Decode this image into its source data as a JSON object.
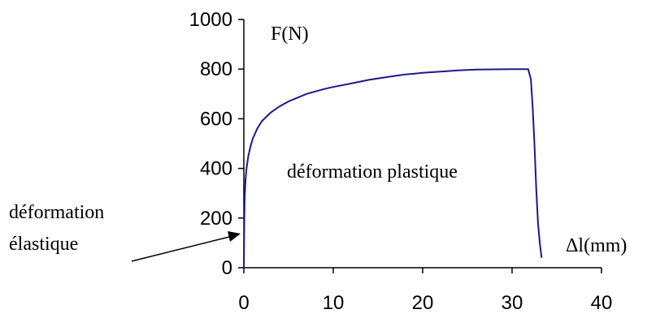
{
  "chart_data": {
    "type": "line",
    "title": "",
    "xlabel": "Δl(mm)",
    "ylabel": "F(N)",
    "xlim": [
      0,
      40
    ],
    "ylim": [
      0,
      1000
    ],
    "x_ticks": [
      0,
      10,
      20,
      30,
      40
    ],
    "y_ticks": [
      0,
      200,
      400,
      600,
      800,
      1000
    ],
    "grid": false,
    "series": [
      {
        "color": "#1a1a8c",
        "x": [
          0,
          0.05,
          0.1,
          0.2,
          0.3,
          0.5,
          0.75,
          1,
          1.5,
          2,
          3,
          4,
          5,
          6,
          7,
          8,
          9,
          10,
          12,
          14,
          16,
          18,
          20,
          22,
          24,
          26,
          28,
          30,
          31,
          31.8,
          32.1,
          32.3,
          32.5,
          32.7,
          32.9,
          33.1,
          33.3
        ],
        "y": [
          0,
          200,
          290,
          360,
          400,
          450,
          490,
          520,
          560,
          590,
          625,
          650,
          670,
          685,
          700,
          710,
          720,
          728,
          742,
          757,
          768,
          778,
          785,
          790,
          795,
          798,
          799,
          800,
          800,
          800,
          760,
          650,
          500,
          320,
          180,
          100,
          40
        ]
      }
    ],
    "annotations": [
      {
        "text": "déformation plastique"
      },
      {
        "text_line1": "déformation",
        "text_line2": "élastique"
      }
    ]
  }
}
